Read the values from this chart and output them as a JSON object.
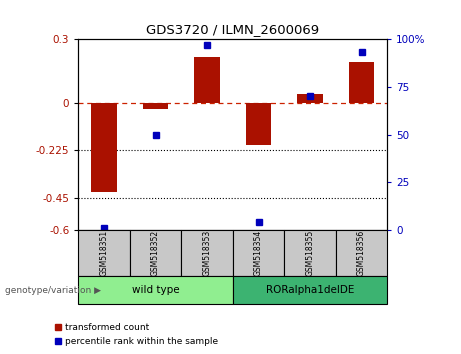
{
  "title": "GDS3720 / ILMN_2600069",
  "samples": [
    "GSM518351",
    "GSM518352",
    "GSM518353",
    "GSM518354",
    "GSM518355",
    "GSM518356"
  ],
  "red_bars": [
    -0.42,
    -0.03,
    0.215,
    -0.2,
    0.04,
    0.19
  ],
  "blue_dot_percentiles": [
    1,
    50,
    97,
    4,
    70,
    93
  ],
  "ylim_left": [
    -0.6,
    0.3
  ],
  "ylim_right": [
    0,
    100
  ],
  "yticks_left": [
    0.3,
    0,
    -0.225,
    -0.45,
    -0.6
  ],
  "ytick_labels_left": [
    "0.3",
    "0",
    "-0.225",
    "-0.45",
    "-0.6"
  ],
  "yticks_right": [
    100,
    75,
    50,
    25,
    0
  ],
  "ytick_labels_right": [
    "100%",
    "75",
    "50",
    "25",
    "0"
  ],
  "hlines": [
    -0.225,
    -0.45
  ],
  "group1_label": "wild type",
  "group2_label": "RORalpha1delDE",
  "group1_color": "#90EE90",
  "group2_color": "#3CB371",
  "bottom_label": "genotype/variation",
  "legend_red": "transformed count",
  "legend_blue": "percentile rank within the sample",
  "bar_color": "#AA1100",
  "dot_color": "#0000BB",
  "zero_line_color": "#CC2200"
}
